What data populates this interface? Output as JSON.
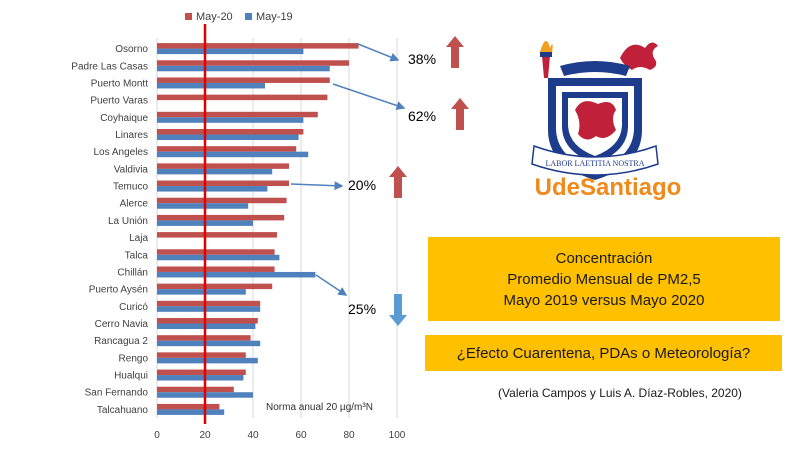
{
  "chart_data": {
    "type": "bar",
    "orientation": "horizontal",
    "categories": [
      "Osorno",
      "Padre Las Casas",
      "Puerto Montt",
      "Puerto Varas",
      "Coyhaique",
      "Linares",
      "Los Angeles",
      "Valdivia",
      "Temuco",
      "Alerce",
      "La Unión",
      "Laja",
      "Talca",
      "Chillán",
      "Puerto Aysén",
      "Curicó",
      "Cerro Navia",
      "Rancagua 2",
      "Rengo",
      "Hualqui",
      "San Fernando",
      "Talcahuano"
    ],
    "series": [
      {
        "name": "May-20",
        "color": "#c0504d",
        "values": [
          84,
          80,
          72,
          71,
          67,
          61,
          58,
          55,
          55,
          54,
          53,
          50,
          49,
          49,
          48,
          43,
          42,
          39,
          37,
          37,
          32,
          26
        ]
      },
      {
        "name": "May-19",
        "color": "#4f81bd",
        "values": [
          61,
          72,
          45,
          null,
          61,
          59,
          63,
          48,
          46,
          38,
          40,
          null,
          51,
          66,
          37,
          43,
          41,
          43,
          42,
          36,
          40,
          28
        ]
      }
    ],
    "xlim": [
      0,
      100
    ],
    "xticks": [
      0,
      20,
      40,
      60,
      80,
      100
    ],
    "legend_position": "top",
    "grid": "vertical",
    "reference_line": {
      "value": 20,
      "color": "#e00000",
      "label": "Norma anual 20 µg/m³N"
    },
    "annotations": [
      {
        "text": "38%",
        "category": "Osorno",
        "direction": "up",
        "color": "#c0504d"
      },
      {
        "text": "62%",
        "category": "Puerto Montt",
        "direction": "up",
        "color": "#c0504d"
      },
      {
        "text": "20%",
        "category": "Temuco",
        "direction": "up",
        "color": "#c0504d"
      },
      {
        "text": "25%",
        "category": "Chillán",
        "direction": "down",
        "color": "#5b9bd5"
      }
    ]
  },
  "logo": {
    "motto": "LABOR LAETITIA NOSTRA",
    "brand": "UdeSantiago",
    "brand_color": "#f08a1c"
  },
  "info": {
    "title_lines": [
      "Concentración",
      "Promedio Mensual de PM2,5",
      "Mayo 2019 versus Mayo 2020"
    ],
    "question": "¿Efecto Cuarentena, PDAs o Meteorología?",
    "credit": "(Valeria Campos y Luis A. Díaz-Robles, 2020)"
  }
}
